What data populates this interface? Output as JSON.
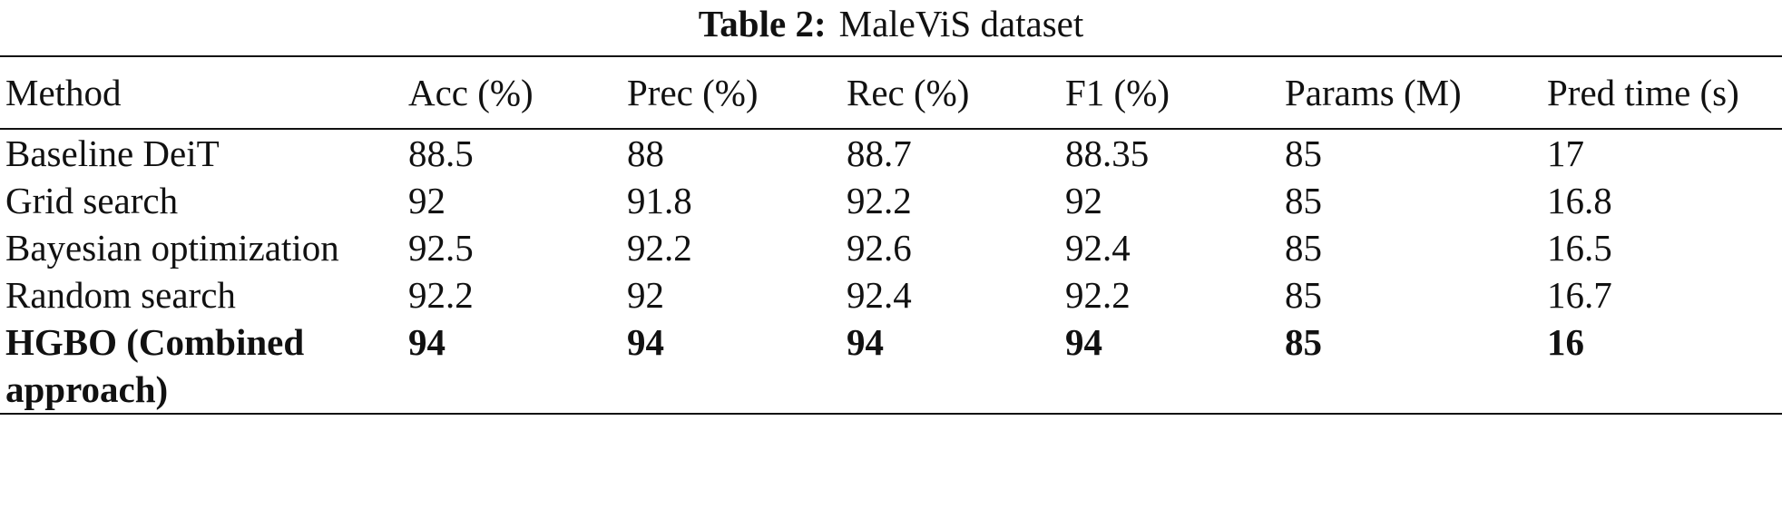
{
  "caption": {
    "label": "Table 2:",
    "title": "MaleViS dataset"
  },
  "table": {
    "columns": [
      "Method",
      "Acc (%)",
      "Prec (%)",
      "Rec (%)",
      "F1 (%)",
      "Params (M)",
      "Pred time (s)"
    ],
    "rows": [
      {
        "method": "Baseline DeiT",
        "acc": "88.5",
        "prec": "88",
        "rec": "88.7",
        "f1": "88.35",
        "params": "85",
        "pred_time": "17",
        "bold": false
      },
      {
        "method": "Grid search",
        "acc": "92",
        "prec": "91.8",
        "rec": "92.2",
        "f1": "92",
        "params": "85",
        "pred_time": "16.8",
        "bold": false
      },
      {
        "method": "Bayesian optimization",
        "acc": "92.5",
        "prec": "92.2",
        "rec": "92.6",
        "f1": "92.4",
        "params": "85",
        "pred_time": "16.5",
        "bold": false
      },
      {
        "method": "Random search",
        "acc": "92.2",
        "prec": "92",
        "rec": "92.4",
        "f1": "92.2",
        "params": "85",
        "pred_time": "16.7",
        "bold": false
      },
      {
        "method": "HGBO (Combined approach)",
        "acc": "94",
        "prec": "94",
        "rec": "94",
        "f1": "94",
        "params": "85",
        "pred_time": "16",
        "bold": true
      }
    ]
  }
}
